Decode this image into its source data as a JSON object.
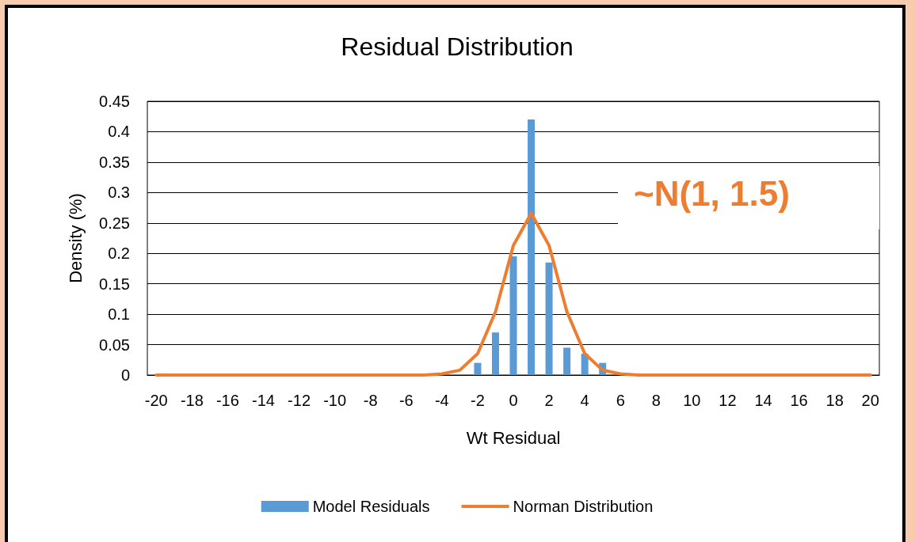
{
  "chart_data": {
    "type": "bar",
    "title": "Residual Distribution",
    "xlabel": "Wt Residual",
    "ylabel": "Density (%)",
    "categories": [
      "-20",
      null,
      "-18",
      null,
      "-16",
      null,
      "-14",
      null,
      "-12",
      null,
      "-10",
      null,
      "-8",
      null,
      "-6",
      null,
      "-4",
      null,
      "-2",
      null,
      "0",
      null,
      "2",
      null,
      "4",
      null,
      "6",
      null,
      "8",
      null,
      "10",
      null,
      "12",
      null,
      "14",
      null,
      "16",
      null,
      "18",
      null,
      "20"
    ],
    "series": [
      {
        "name": "Model Residuals",
        "color": "#5b9bd5",
        "values": [
          0,
          0,
          0,
          0,
          0,
          0,
          0,
          0,
          0,
          0,
          0,
          0,
          0,
          0,
          0,
          0,
          0,
          0,
          0.02,
          0.07,
          0.195,
          0.42,
          0.185,
          0.045,
          0.035,
          0.02,
          0,
          0,
          0,
          0,
          0,
          0,
          0,
          0,
          0,
          0,
          0,
          0,
          0,
          0,
          0
        ]
      },
      {
        "name": "Norman Distribution",
        "type": "line",
        "color": "#ed7d31",
        "values": [
          0,
          0,
          0,
          0,
          0,
          0,
          0,
          0,
          0,
          0,
          0,
          0,
          0,
          0,
          0,
          0,
          0.002,
          0.008,
          0.035,
          0.104,
          0.213,
          0.266,
          0.213,
          0.104,
          0.035,
          0.008,
          0.002,
          0,
          0,
          0,
          0,
          0,
          0,
          0,
          0,
          0,
          0,
          0,
          0,
          0,
          0
        ]
      }
    ],
    "ylim": [
      0,
      0.45
    ],
    "yticks": [
      0,
      0.05,
      0.1,
      0.15,
      0.2,
      0.25,
      0.3,
      0.35,
      0.4,
      0.45
    ],
    "grid": "y",
    "legend": "bottom",
    "marker": "none",
    "line_style": "solid",
    "annotations": [
      "~N(1, 1.5)"
    ]
  }
}
